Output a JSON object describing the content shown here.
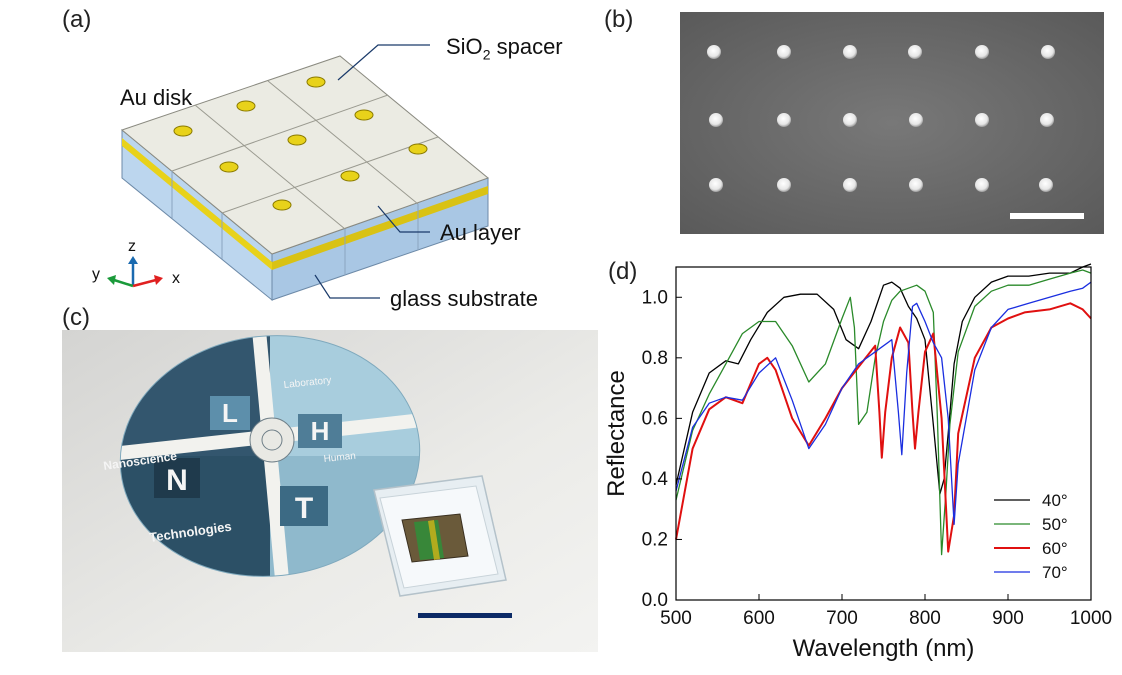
{
  "panels": {
    "a": {
      "label": "(a)",
      "spacer_label": "SiO",
      "spacer_sub": "2",
      "spacer_suffix": " spacer",
      "disk_label": "Au disk",
      "layer_label": "Au layer",
      "substrate_label": "glass substrate",
      "axis_z": "z",
      "axis_y": "y",
      "axis_x": "x"
    },
    "b": {
      "label": "(b)"
    },
    "c": {
      "label": "(c)",
      "logo_text": {
        "laboratory": "Laboratory",
        "human": "Human",
        "nanoscience": "Nanoscience",
        "technologies": "Technologies",
        "L": "L",
        "H": "H",
        "N": "N",
        "T": "T"
      }
    },
    "d": {
      "label": "(d)"
    }
  },
  "colors": {
    "s40": "#000000",
    "s50": "#2a8a2a",
    "s60": "#e01010",
    "s70": "#1a2ee0",
    "gold": "#e8d21a",
    "glass": "#bcd6ee",
    "scalebar_c": "#0c2a66"
  },
  "chart_data": {
    "type": "line",
    "xlabel": "Wavelength (nm)",
    "ylabel": "Reflectance",
    "xlim": [
      500,
      1000
    ],
    "ylim": [
      0.0,
      1.1
    ],
    "xticks": [
      "500",
      "600",
      "700",
      "800",
      "900",
      "1000"
    ],
    "yticks": [
      "0.0",
      "0.2",
      "0.4",
      "0.6",
      "0.8",
      "1.0"
    ],
    "legend_position": "bottom-right",
    "series": [
      {
        "name": "40°",
        "color": "#000000",
        "x": [
          500,
          520,
          540,
          560,
          575,
          590,
          610,
          630,
          650,
          670,
          690,
          705,
          720,
          735,
          750,
          760,
          770,
          780,
          790,
          800,
          810,
          818,
          823,
          828,
          835,
          845,
          860,
          880,
          900,
          925,
          950,
          975,
          990,
          1000
        ],
        "y": [
          0.38,
          0.62,
          0.75,
          0.79,
          0.78,
          0.86,
          0.95,
          1.0,
          1.01,
          1.01,
          0.96,
          0.86,
          0.83,
          0.92,
          1.04,
          1.05,
          1.03,
          0.97,
          0.93,
          0.86,
          0.58,
          0.35,
          0.4,
          0.55,
          0.78,
          0.92,
          1.0,
          1.05,
          1.07,
          1.07,
          1.08,
          1.08,
          1.1,
          1.11
        ]
      },
      {
        "name": "50°",
        "color": "#2a8a2a",
        "x": [
          500,
          520,
          540,
          560,
          580,
          600,
          620,
          640,
          660,
          680,
          700,
          710,
          715,
          720,
          730,
          740,
          750,
          760,
          770,
          780,
          790,
          800,
          810,
          815,
          820,
          825,
          830,
          840,
          860,
          880,
          900,
          925,
          950,
          975,
          990,
          1000
        ],
        "y": [
          0.33,
          0.56,
          0.68,
          0.78,
          0.88,
          0.92,
          0.92,
          0.84,
          0.72,
          0.78,
          0.93,
          1.0,
          0.9,
          0.58,
          0.62,
          0.8,
          0.92,
          0.99,
          1.02,
          1.03,
          1.04,
          1.02,
          0.95,
          0.6,
          0.15,
          0.35,
          0.58,
          0.82,
          0.97,
          1.02,
          1.04,
          1.04,
          1.06,
          1.08,
          1.09,
          1.08
        ]
      },
      {
        "name": "60°",
        "color": "#e01010",
        "x": [
          500,
          520,
          540,
          560,
          580,
          600,
          610,
          620,
          640,
          660,
          680,
          700,
          720,
          740,
          745,
          748,
          752,
          760,
          770,
          780,
          785,
          788,
          792,
          800,
          810,
          820,
          828,
          835,
          840,
          860,
          880,
          900,
          920,
          950,
          975,
          990,
          1000
        ],
        "y": [
          0.2,
          0.5,
          0.63,
          0.67,
          0.65,
          0.78,
          0.8,
          0.76,
          0.6,
          0.51,
          0.6,
          0.7,
          0.77,
          0.84,
          0.62,
          0.47,
          0.62,
          0.8,
          0.9,
          0.85,
          0.62,
          0.5,
          0.62,
          0.82,
          0.88,
          0.6,
          0.16,
          0.28,
          0.55,
          0.8,
          0.9,
          0.93,
          0.95,
          0.96,
          0.98,
          0.96,
          0.93
        ]
      },
      {
        "name": "70°",
        "color": "#1a2ee0",
        "x": [
          500,
          520,
          540,
          560,
          580,
          600,
          620,
          640,
          660,
          680,
          700,
          720,
          740,
          760,
          768,
          772,
          778,
          785,
          790,
          800,
          810,
          820,
          828,
          835,
          840,
          860,
          880,
          900,
          925,
          950,
          975,
          990,
          1000
        ],
        "y": [
          0.36,
          0.57,
          0.65,
          0.67,
          0.66,
          0.75,
          0.8,
          0.66,
          0.5,
          0.58,
          0.7,
          0.78,
          0.82,
          0.86,
          0.62,
          0.48,
          0.75,
          0.97,
          0.98,
          0.92,
          0.85,
          0.8,
          0.6,
          0.25,
          0.45,
          0.76,
          0.9,
          0.96,
          0.98,
          1.0,
          1.02,
          1.03,
          1.05
        ]
      }
    ]
  }
}
